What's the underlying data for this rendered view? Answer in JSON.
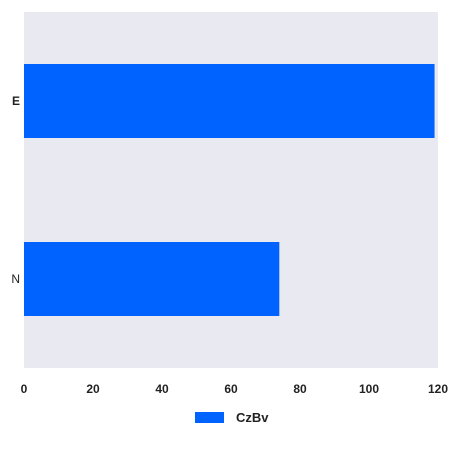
{
  "chart_data": {
    "type": "bar",
    "orientation": "horizontal",
    "categories": [
      "E",
      "N"
    ],
    "series": [
      {
        "name": "CzBv",
        "values": [
          119,
          74
        ],
        "color": "#0062ff"
      }
    ],
    "xlim": [
      0,
      120
    ],
    "xticks": [
      "0",
      "20",
      "40",
      "60",
      "80",
      "100",
      "120"
    ],
    "grid": false,
    "legend": "bottom-center",
    "background_color": "#e9e9f2"
  }
}
